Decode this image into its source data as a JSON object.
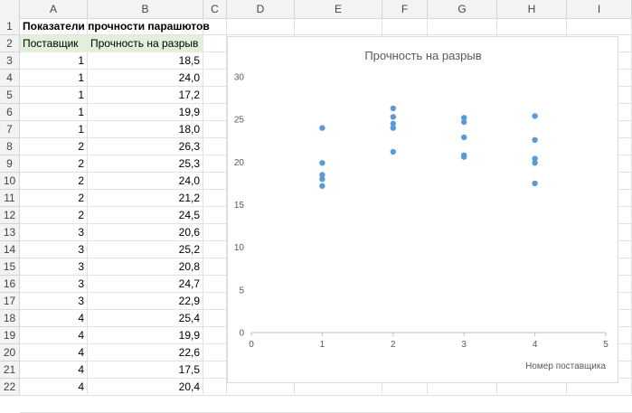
{
  "columns": [
    "A",
    "B",
    "C",
    "D",
    "E",
    "F",
    "G",
    "H",
    "I"
  ],
  "rows": [
    "1",
    "2",
    "3",
    "4",
    "5",
    "6",
    "7",
    "8",
    "9",
    "10",
    "11",
    "12",
    "13",
    "14",
    "15",
    "16",
    "17",
    "18",
    "19",
    "20",
    "21",
    "22"
  ],
  "table": {
    "title": "Показатели прочности парашютов",
    "header_supplier": "Поставщик",
    "header_strength": "Прочность на разрыв",
    "data": [
      {
        "supplier": "1",
        "strength": "18,5"
      },
      {
        "supplier": "1",
        "strength": "24,0"
      },
      {
        "supplier": "1",
        "strength": "17,2"
      },
      {
        "supplier": "1",
        "strength": "19,9"
      },
      {
        "supplier": "1",
        "strength": "18,0"
      },
      {
        "supplier": "2",
        "strength": "26,3"
      },
      {
        "supplier": "2",
        "strength": "25,3"
      },
      {
        "supplier": "2",
        "strength": "24,0"
      },
      {
        "supplier": "2",
        "strength": "21,2"
      },
      {
        "supplier": "2",
        "strength": "24,5"
      },
      {
        "supplier": "3",
        "strength": "20,6"
      },
      {
        "supplier": "3",
        "strength": "25,2"
      },
      {
        "supplier": "3",
        "strength": "20,8"
      },
      {
        "supplier": "3",
        "strength": "24,7"
      },
      {
        "supplier": "3",
        "strength": "22,9"
      },
      {
        "supplier": "4",
        "strength": "25,4"
      },
      {
        "supplier": "4",
        "strength": "19,9"
      },
      {
        "supplier": "4",
        "strength": "22,6"
      },
      {
        "supplier": "4",
        "strength": "17,5"
      },
      {
        "supplier": "4",
        "strength": "20,4"
      }
    ]
  },
  "chart_data": {
    "type": "scatter",
    "title": "Прочность на разрыв",
    "xlabel": "Номер поставщика",
    "ylabel": "",
    "xlim": [
      0,
      5
    ],
    "ylim": [
      0,
      30
    ],
    "x_ticks": [
      0,
      1,
      2,
      3,
      4,
      5
    ],
    "y_ticks": [
      0,
      5,
      10,
      15,
      20,
      25,
      30
    ],
    "grid": false,
    "marker_color": "#5b9bd5",
    "points": [
      {
        "x": 1,
        "y": 18.5
      },
      {
        "x": 1,
        "y": 24.0
      },
      {
        "x": 1,
        "y": 17.2
      },
      {
        "x": 1,
        "y": 19.9
      },
      {
        "x": 1,
        "y": 18.0
      },
      {
        "x": 2,
        "y": 26.3
      },
      {
        "x": 2,
        "y": 25.3
      },
      {
        "x": 2,
        "y": 24.0
      },
      {
        "x": 2,
        "y": 21.2
      },
      {
        "x": 2,
        "y": 24.5
      },
      {
        "x": 3,
        "y": 20.6
      },
      {
        "x": 3,
        "y": 25.2
      },
      {
        "x": 3,
        "y": 20.8
      },
      {
        "x": 3,
        "y": 24.7
      },
      {
        "x": 3,
        "y": 22.9
      },
      {
        "x": 4,
        "y": 25.4
      },
      {
        "x": 4,
        "y": 19.9
      },
      {
        "x": 4,
        "y": 22.6
      },
      {
        "x": 4,
        "y": 17.5
      },
      {
        "x": 4,
        "y": 20.4
      }
    ]
  }
}
